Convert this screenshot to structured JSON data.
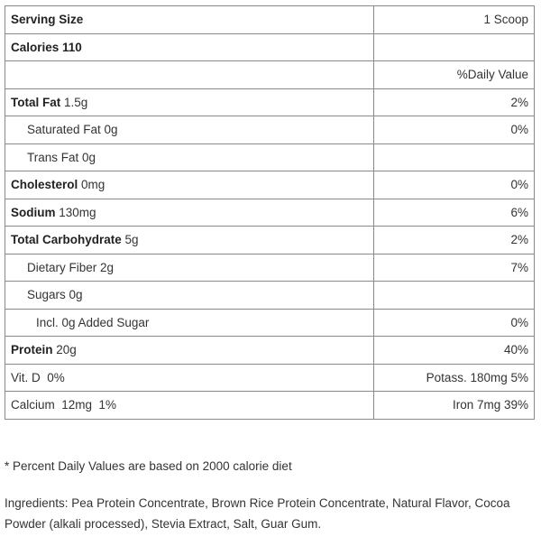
{
  "table": {
    "rows": [
      {
        "name": "Serving Size",
        "value": "1 Scoop"
      },
      {
        "name": "Calories 110"
      },
      {
        "value": "%Daily Value"
      },
      {
        "name": "Total Fat",
        "amount": "1.5g",
        "value": "2%"
      },
      {
        "amount": "Saturated Fat 0g",
        "value": "0%"
      },
      {
        "amount": "Trans Fat 0g"
      },
      {
        "name": "Cholesterol",
        "amount": "0mg",
        "value": "0%"
      },
      {
        "name": "Sodium",
        "amount": "130mg",
        "value": "6%"
      },
      {
        "name": "Total Carbohydrate",
        "amount": "5g",
        "value": "2%"
      },
      {
        "amount": "Dietary Fiber 2g",
        "value": "7%"
      },
      {
        "amount": "Sugars 0g"
      },
      {
        "amount": "Incl. 0g Added Sugar",
        "value": "0%"
      },
      {
        "name": "Protein",
        "amount": "20g",
        "value": "40%"
      },
      {
        "amount": "Vit. D  0%",
        "value": "Potass. 180mg 5%"
      },
      {
        "amount": "Calcium  12mg  1%",
        "value": "Iron 7mg 39%"
      }
    ]
  },
  "note": "* Percent Daily Values are based on 2000 calorie diet",
  "ingredients": "Ingredients: Pea Protein Concentrate, Brown Rice Protein Concentrate, Natural Flavor, Cocoa Powder (alkali processed), Stevia Extract, Salt, Guar Gum."
}
